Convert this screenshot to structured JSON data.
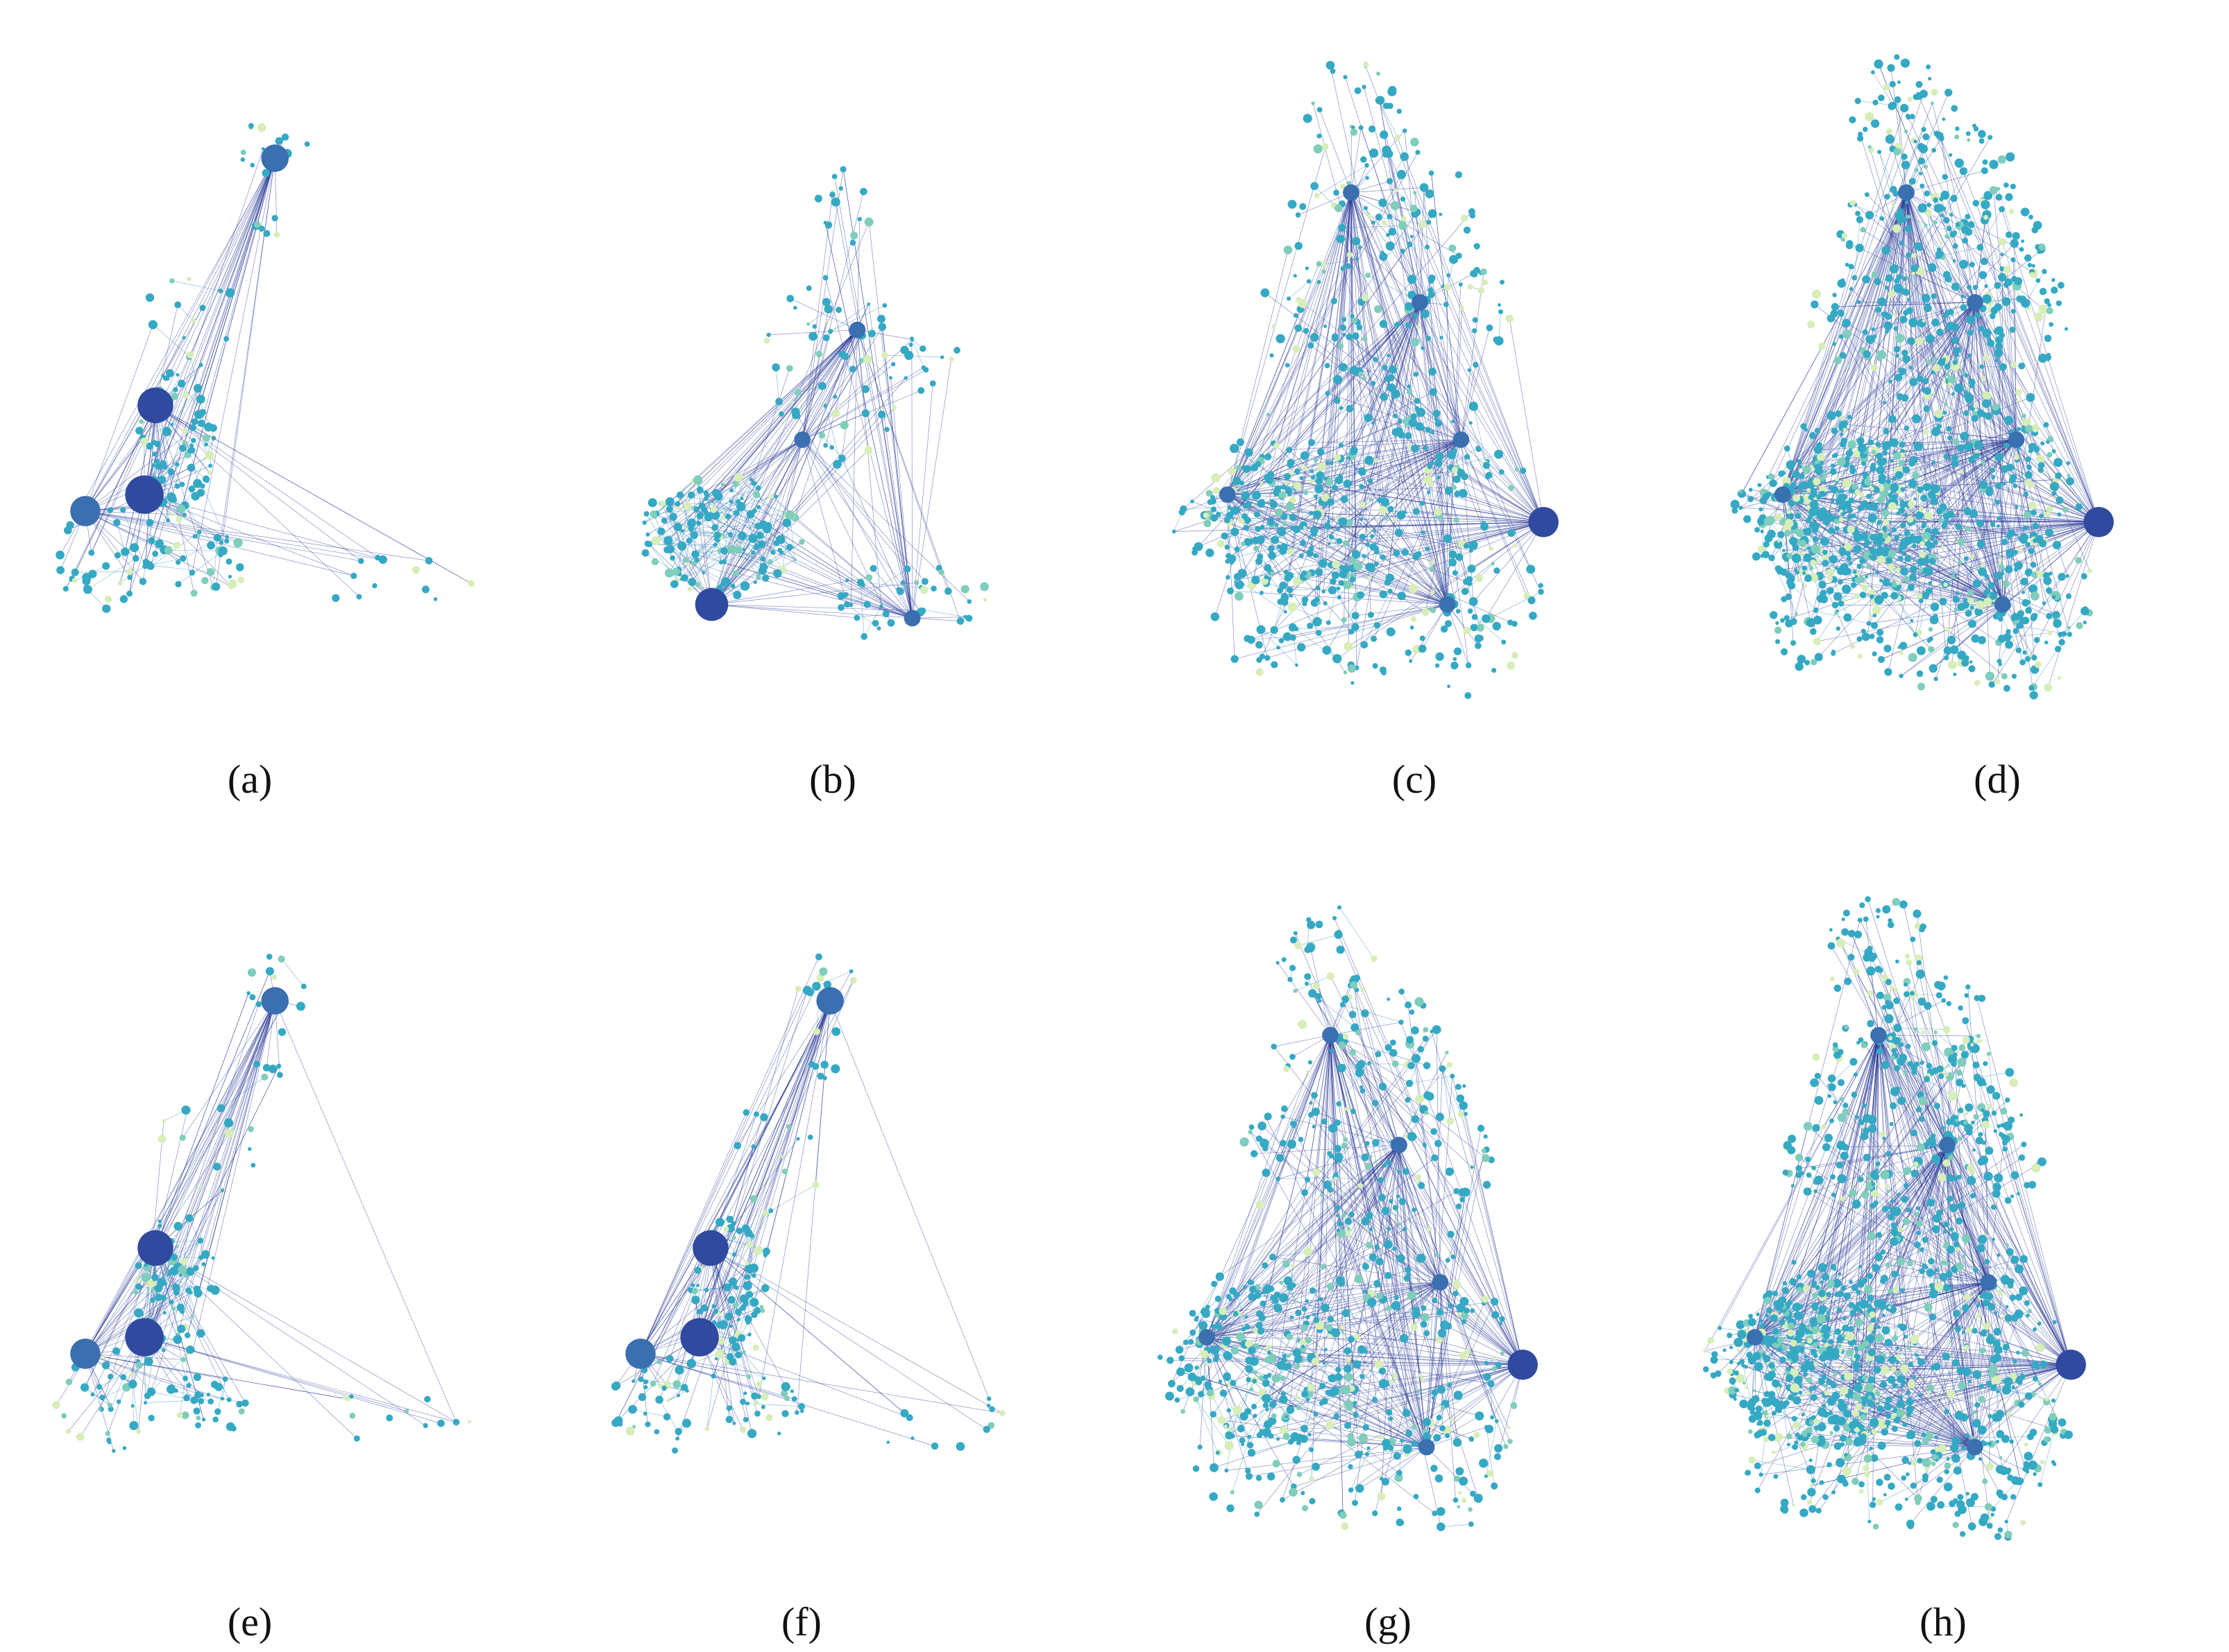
{
  "figure": {
    "background": "#ffffff",
    "palette": {
      "hub": "#2f4a9e",
      "mid_hub": "#3a6fb0",
      "node": "#35a9c4",
      "node_light": "#7fcdbb",
      "node_faint": "#d7eeb8",
      "edge": "#2c7fb8",
      "edge_dense": "#253494"
    },
    "panels": [
      {
        "id": "a",
        "caption": "(a)",
        "density": "sparse"
      },
      {
        "id": "b",
        "caption": "(b)",
        "density": "medium"
      },
      {
        "id": "c",
        "caption": "(c)",
        "density": "dense"
      },
      {
        "id": "d",
        "caption": "(d)",
        "density": "very-dense"
      },
      {
        "id": "e",
        "caption": "(e)",
        "density": "sparse"
      },
      {
        "id": "f",
        "caption": "(f)",
        "density": "sparse"
      },
      {
        "id": "g",
        "caption": "(g)",
        "density": "dense"
      },
      {
        "id": "h",
        "caption": "(h)",
        "density": "very-dense"
      }
    ]
  }
}
